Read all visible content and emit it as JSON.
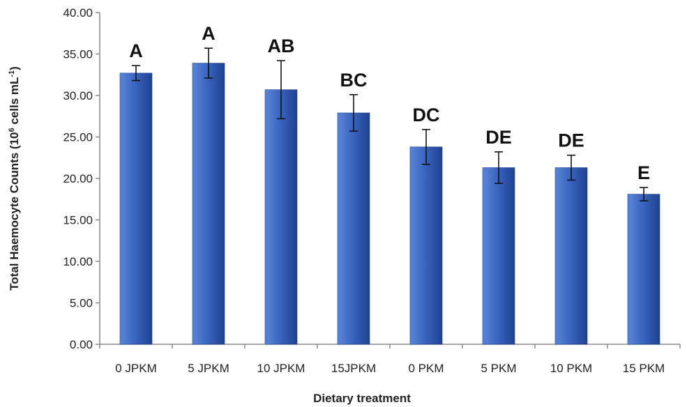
{
  "chart_data": {
    "type": "bar",
    "title": "",
    "xlabel": "Dietary treatment",
    "ylabel_main": "Total Haemocyte Counts (10",
    "ylabel_exp": "6",
    "ylabel_mid": " cells mL",
    "ylabel_exp2": "-1",
    "ylabel_end": ")",
    "ylim": [
      0,
      40
    ],
    "ytick_step": 5,
    "ytick_decimals": 2,
    "categories": [
      "0 JPKM",
      "5 JPKM",
      "10 JPKM",
      "15JPKM",
      "0 PKM",
      "5 PKM",
      "10 PKM",
      "15 PKM"
    ],
    "values": [
      32.7,
      33.9,
      30.7,
      27.9,
      23.8,
      21.3,
      21.3,
      18.1
    ],
    "errors": [
      0.9,
      1.8,
      3.5,
      2.2,
      2.1,
      1.9,
      1.5,
      0.8
    ],
    "significance": [
      "A",
      "A",
      "AB",
      "BC",
      "DC",
      "DE",
      "DE",
      "E"
    ],
    "grid": false,
    "legend": "none",
    "colors": {
      "bar_light": "#5b86d6",
      "bar_mid": "#3a65c1",
      "bar_dark": "#1f418f",
      "axis": "#8a8a8a",
      "error": "#111111"
    }
  }
}
